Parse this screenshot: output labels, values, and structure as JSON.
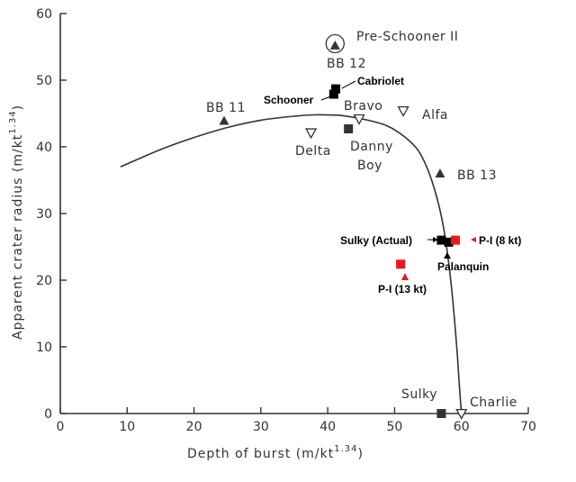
{
  "chart_data": {
    "type": "scatter",
    "title": "",
    "xlabel": "Depth of burst (m/kt",
    "xlabel_exp": "1.34",
    "xlabel_close": ")",
    "ylabel": "Apparent crater radius (m/kt",
    "ylabel_exp": "1.34",
    "ylabel_close": ")",
    "xlim": [
      0,
      70
    ],
    "ylim": [
      0,
      60
    ],
    "x_ticks": [
      0,
      10,
      20,
      30,
      40,
      50,
      60,
      70
    ],
    "y_ticks": [
      0,
      10,
      20,
      30,
      40,
      50,
      60
    ],
    "x_tick_labels": [
      "0",
      "10",
      "20",
      "30",
      "40",
      "50",
      "60",
      "70"
    ],
    "y_tick_labels": [
      "0",
      "10",
      "20",
      "30",
      "40",
      "50",
      "60"
    ],
    "grid": false,
    "curve": {
      "x": [
        9.0,
        15,
        20,
        25,
        30,
        35,
        38,
        42,
        46,
        49,
        51.5,
        53.5,
        55,
        56.3,
        57.3,
        58.1,
        58.7,
        59.3,
        59.7,
        60.0
      ],
      "y": [
        37.0,
        39.6,
        41.4,
        42.9,
        44.0,
        44.6,
        44.8,
        44.7,
        44.0,
        43.1,
        41.5,
        39.5,
        36.5,
        32.5,
        28.0,
        22.5,
        17.0,
        10.0,
        4.0,
        0.0
      ]
    },
    "points": [
      {
        "label": "Pre-Schooner II",
        "x": 41.1,
        "y": 55.2,
        "marker": "triangle-circled",
        "color": "#333333"
      },
      {
        "label": "BB 12",
        "x": 41.1,
        "y": 55.2,
        "marker": "none",
        "color": "#333333"
      },
      {
        "label": "Cabriolet",
        "x": 41.2,
        "y": 48.7,
        "marker": "square",
        "color": "#000000"
      },
      {
        "label": "Schooner",
        "x": 40.9,
        "y": 47.9,
        "marker": "square",
        "color": "#000000"
      },
      {
        "label": "BB 11",
        "x": 24.5,
        "y": 43.9,
        "marker": "triangle",
        "color": "#333333"
      },
      {
        "label": "Bravo",
        "x": 44.7,
        "y": 44.2,
        "marker": "triangle-down-open",
        "color": "#333333"
      },
      {
        "label": "Alfa",
        "x": 51.3,
        "y": 45.4,
        "marker": "triangle-down-open",
        "color": "#333333"
      },
      {
        "label": "Delta",
        "x": 37.5,
        "y": 42.1,
        "marker": "triangle-down-open",
        "color": "#333333"
      },
      {
        "label": "Danny Boy",
        "x": 43.1,
        "y": 42.7,
        "marker": "square",
        "color": "#333333"
      },
      {
        "label": "BB 13",
        "x": 56.8,
        "y": 36.0,
        "marker": "triangle",
        "color": "#333333"
      },
      {
        "label": "Sulky (Actual)",
        "x": 57.0,
        "y": 26.0,
        "marker": "square",
        "color": "#000000"
      },
      {
        "label": "Palanquin",
        "x": 58.1,
        "y": 25.7,
        "marker": "square",
        "color": "#000000"
      },
      {
        "label": "P-I (8 kt)",
        "x": 59.1,
        "y": 26.0,
        "marker": "square",
        "color": "#e8191f"
      },
      {
        "label": "P-I (13 kt)",
        "x": 50.9,
        "y": 22.4,
        "marker": "square",
        "color": "#e8191f"
      },
      {
        "label": "Sulky",
        "x": 57.0,
        "y": 0.0,
        "marker": "square",
        "color": "#333333"
      },
      {
        "label": "Charlie",
        "x": 60.0,
        "y": 0.0,
        "marker": "triangle-down-open",
        "color": "#333333"
      }
    ]
  }
}
